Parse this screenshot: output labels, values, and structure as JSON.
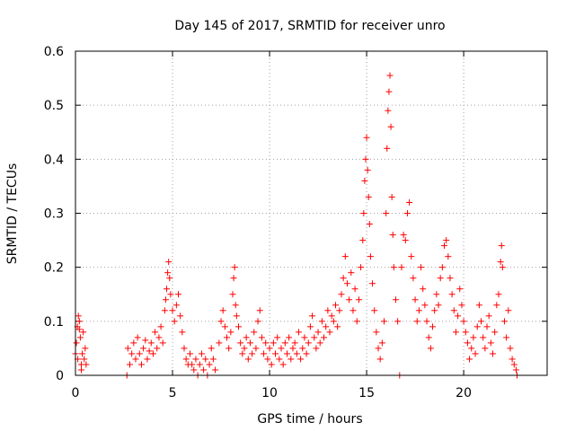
{
  "chart_data": {
    "type": "scatter",
    "title": "Day 145 of 2017, SRMTID for receiver unro",
    "xlabel": "GPS time / hours",
    "ylabel": "SRMTID / TECUs",
    "xlim": [
      0,
      24.3
    ],
    "ylim": [
      0,
      0.6
    ],
    "x_ticks": [
      0,
      5,
      10,
      15,
      20
    ],
    "x_tick_labels": [
      "0",
      "5",
      "10",
      "15",
      "20"
    ],
    "y_ticks": [
      0,
      0.1,
      0.2,
      0.3,
      0.4,
      0.5,
      0.6
    ],
    "y_tick_labels": [
      "0",
      "0.1",
      "0.2",
      "0.3",
      "0.4",
      "0.5",
      "0.6"
    ],
    "grid": true,
    "marker": "+",
    "series": [
      {
        "name": "SRMTID",
        "color": "#ff0000",
        "points": [
          [
            0.0,
            0.04
          ],
          [
            0.05,
            0.06
          ],
          [
            0.1,
            0.09
          ],
          [
            0.12,
            0.03
          ],
          [
            0.15,
            0.11
          ],
          [
            0.2,
            0.085
          ],
          [
            0.25,
            0.07
          ],
          [
            0.3,
            0.02
          ],
          [
            0.35,
            0.04
          ],
          [
            0.4,
            0.08
          ],
          [
            0.45,
            0.03
          ],
          [
            0.5,
            0.05
          ],
          [
            0.55,
            0.02
          ],
          [
            0.3,
            0.01
          ],
          [
            0.2,
            0.1
          ],
          [
            2.65,
            0.0
          ],
          [
            2.7,
            0.05
          ],
          [
            2.8,
            0.02
          ],
          [
            2.9,
            0.04
          ],
          [
            3.0,
            0.06
          ],
          [
            3.1,
            0.03
          ],
          [
            3.2,
            0.07
          ],
          [
            3.3,
            0.04
          ],
          [
            3.4,
            0.02
          ],
          [
            3.5,
            0.05
          ],
          [
            3.6,
            0.065
          ],
          [
            3.7,
            0.03
          ],
          [
            3.8,
            0.045
          ],
          [
            3.9,
            0.06
          ],
          [
            4.0,
            0.04
          ],
          [
            4.1,
            0.08
          ],
          [
            4.2,
            0.05
          ],
          [
            4.3,
            0.07
          ],
          [
            4.4,
            0.09
          ],
          [
            4.5,
            0.06
          ],
          [
            4.6,
            0.12
          ],
          [
            4.65,
            0.14
          ],
          [
            4.7,
            0.16
          ],
          [
            4.75,
            0.19
          ],
          [
            4.8,
            0.21
          ],
          [
            4.85,
            0.18
          ],
          [
            4.9,
            0.15
          ],
          [
            5.0,
            0.12
          ],
          [
            5.1,
            0.1
          ],
          [
            5.2,
            0.13
          ],
          [
            5.3,
            0.15
          ],
          [
            5.4,
            0.11
          ],
          [
            5.5,
            0.08
          ],
          [
            5.6,
            0.05
          ],
          [
            5.7,
            0.03
          ],
          [
            5.8,
            0.02
          ],
          [
            5.9,
            0.04
          ],
          [
            6.0,
            0.02
          ],
          [
            6.1,
            0.01
          ],
          [
            6.2,
            0.03
          ],
          [
            6.3,
            0.0
          ],
          [
            6.4,
            0.02
          ],
          [
            6.5,
            0.04
          ],
          [
            6.6,
            0.01
          ],
          [
            6.7,
            0.03
          ],
          [
            6.8,
            0.0
          ],
          [
            6.9,
            0.02
          ],
          [
            7.0,
            0.05
          ],
          [
            7.1,
            0.03
          ],
          [
            7.2,
            0.01
          ],
          [
            7.4,
            0.06
          ],
          [
            7.5,
            0.1
          ],
          [
            7.6,
            0.12
          ],
          [
            7.7,
            0.09
          ],
          [
            7.8,
            0.07
          ],
          [
            7.9,
            0.05
          ],
          [
            8.0,
            0.08
          ],
          [
            8.1,
            0.15
          ],
          [
            8.15,
            0.18
          ],
          [
            8.2,
            0.2
          ],
          [
            8.25,
            0.13
          ],
          [
            8.3,
            0.11
          ],
          [
            8.4,
            0.09
          ],
          [
            8.5,
            0.06
          ],
          [
            8.6,
            0.04
          ],
          [
            8.7,
            0.05
          ],
          [
            8.8,
            0.07
          ],
          [
            8.9,
            0.03
          ],
          [
            9.0,
            0.06
          ],
          [
            9.1,
            0.04
          ],
          [
            9.2,
            0.08
          ],
          [
            9.3,
            0.05
          ],
          [
            9.4,
            0.1
          ],
          [
            9.5,
            0.12
          ],
          [
            9.6,
            0.07
          ],
          [
            9.7,
            0.04
          ],
          [
            9.8,
            0.06
          ],
          [
            9.9,
            0.03
          ],
          [
            10.0,
            0.05
          ],
          [
            10.1,
            0.02
          ],
          [
            10.2,
            0.06
          ],
          [
            10.3,
            0.04
          ],
          [
            10.4,
            0.07
          ],
          [
            10.5,
            0.03
          ],
          [
            10.6,
            0.05
          ],
          [
            10.7,
            0.02
          ],
          [
            10.8,
            0.06
          ],
          [
            10.9,
            0.04
          ],
          [
            11.0,
            0.07
          ],
          [
            11.1,
            0.03
          ],
          [
            11.2,
            0.05
          ],
          [
            11.3,
            0.06
          ],
          [
            11.4,
            0.04
          ],
          [
            11.5,
            0.08
          ],
          [
            11.6,
            0.03
          ],
          [
            11.7,
            0.05
          ],
          [
            11.8,
            0.07
          ],
          [
            11.9,
            0.04
          ],
          [
            12.0,
            0.06
          ],
          [
            12.1,
            0.09
          ],
          [
            12.2,
            0.11
          ],
          [
            12.3,
            0.07
          ],
          [
            12.4,
            0.05
          ],
          [
            12.5,
            0.08
          ],
          [
            12.6,
            0.06
          ],
          [
            12.7,
            0.1
          ],
          [
            12.8,
            0.07
          ],
          [
            12.9,
            0.09
          ],
          [
            13.0,
            0.12
          ],
          [
            13.1,
            0.08
          ],
          [
            13.2,
            0.11
          ],
          [
            13.3,
            0.1
          ],
          [
            13.4,
            0.13
          ],
          [
            13.5,
            0.09
          ],
          [
            13.6,
            0.12
          ],
          [
            13.7,
            0.15
          ],
          [
            13.8,
            0.18
          ],
          [
            13.9,
            0.22
          ],
          [
            14.0,
            0.17
          ],
          [
            14.1,
            0.14
          ],
          [
            14.2,
            0.19
          ],
          [
            14.3,
            0.12
          ],
          [
            14.4,
            0.16
          ],
          [
            14.5,
            0.1
          ],
          [
            14.6,
            0.14
          ],
          [
            14.7,
            0.2
          ],
          [
            14.8,
            0.25
          ],
          [
            14.85,
            0.3
          ],
          [
            14.9,
            0.36
          ],
          [
            14.95,
            0.4
          ],
          [
            15.0,
            0.44
          ],
          [
            15.05,
            0.38
          ],
          [
            15.1,
            0.33
          ],
          [
            15.15,
            0.28
          ],
          [
            15.2,
            0.22
          ],
          [
            15.3,
            0.17
          ],
          [
            15.4,
            0.12
          ],
          [
            15.5,
            0.08
          ],
          [
            15.6,
            0.05
          ],
          [
            15.7,
            0.03
          ],
          [
            15.8,
            0.06
          ],
          [
            15.9,
            0.1
          ],
          [
            16.0,
            0.3
          ],
          [
            16.05,
            0.42
          ],
          [
            16.1,
            0.49
          ],
          [
            16.15,
            0.525
          ],
          [
            16.2,
            0.555
          ],
          [
            16.25,
            0.46
          ],
          [
            16.3,
            0.33
          ],
          [
            16.35,
            0.26
          ],
          [
            16.4,
            0.2
          ],
          [
            16.5,
            0.14
          ],
          [
            16.6,
            0.1
          ],
          [
            16.7,
            0.0
          ],
          [
            16.8,
            0.2
          ],
          [
            16.9,
            0.26
          ],
          [
            17.0,
            0.25
          ],
          [
            17.1,
            0.3
          ],
          [
            17.2,
            0.32
          ],
          [
            17.3,
            0.22
          ],
          [
            17.4,
            0.18
          ],
          [
            17.5,
            0.14
          ],
          [
            17.6,
            0.1
          ],
          [
            17.7,
            0.12
          ],
          [
            17.8,
            0.2
          ],
          [
            17.9,
            0.16
          ],
          [
            18.0,
            0.13
          ],
          [
            18.1,
            0.1
          ],
          [
            18.2,
            0.07
          ],
          [
            18.3,
            0.05
          ],
          [
            18.4,
            0.09
          ],
          [
            18.5,
            0.12
          ],
          [
            18.6,
            0.15
          ],
          [
            18.7,
            0.13
          ],
          [
            18.8,
            0.18
          ],
          [
            18.9,
            0.2
          ],
          [
            19.0,
            0.24
          ],
          [
            19.1,
            0.25
          ],
          [
            19.2,
            0.22
          ],
          [
            19.3,
            0.18
          ],
          [
            19.4,
            0.15
          ],
          [
            19.5,
            0.12
          ],
          [
            19.6,
            0.08
          ],
          [
            19.7,
            0.11
          ],
          [
            19.8,
            0.16
          ],
          [
            19.9,
            0.13
          ],
          [
            20.0,
            0.1
          ],
          [
            20.1,
            0.08
          ],
          [
            20.2,
            0.06
          ],
          [
            20.3,
            0.03
          ],
          [
            20.4,
            0.05
          ],
          [
            20.5,
            0.07
          ],
          [
            20.6,
            0.04
          ],
          [
            20.7,
            0.09
          ],
          [
            20.8,
            0.13
          ],
          [
            20.9,
            0.1
          ],
          [
            21.0,
            0.07
          ],
          [
            21.1,
            0.05
          ],
          [
            21.2,
            0.09
          ],
          [
            21.3,
            0.11
          ],
          [
            21.4,
            0.06
          ],
          [
            21.5,
            0.04
          ],
          [
            21.6,
            0.08
          ],
          [
            21.7,
            0.13
          ],
          [
            21.8,
            0.15
          ],
          [
            21.9,
            0.21
          ],
          [
            21.95,
            0.24
          ],
          [
            22.0,
            0.2
          ],
          [
            22.1,
            0.1
          ],
          [
            22.2,
            0.07
          ],
          [
            22.3,
            0.12
          ],
          [
            22.4,
            0.05
          ],
          [
            22.5,
            0.03
          ],
          [
            22.6,
            0.02
          ],
          [
            22.7,
            0.01
          ],
          [
            22.75,
            0.0
          ]
        ]
      }
    ]
  }
}
